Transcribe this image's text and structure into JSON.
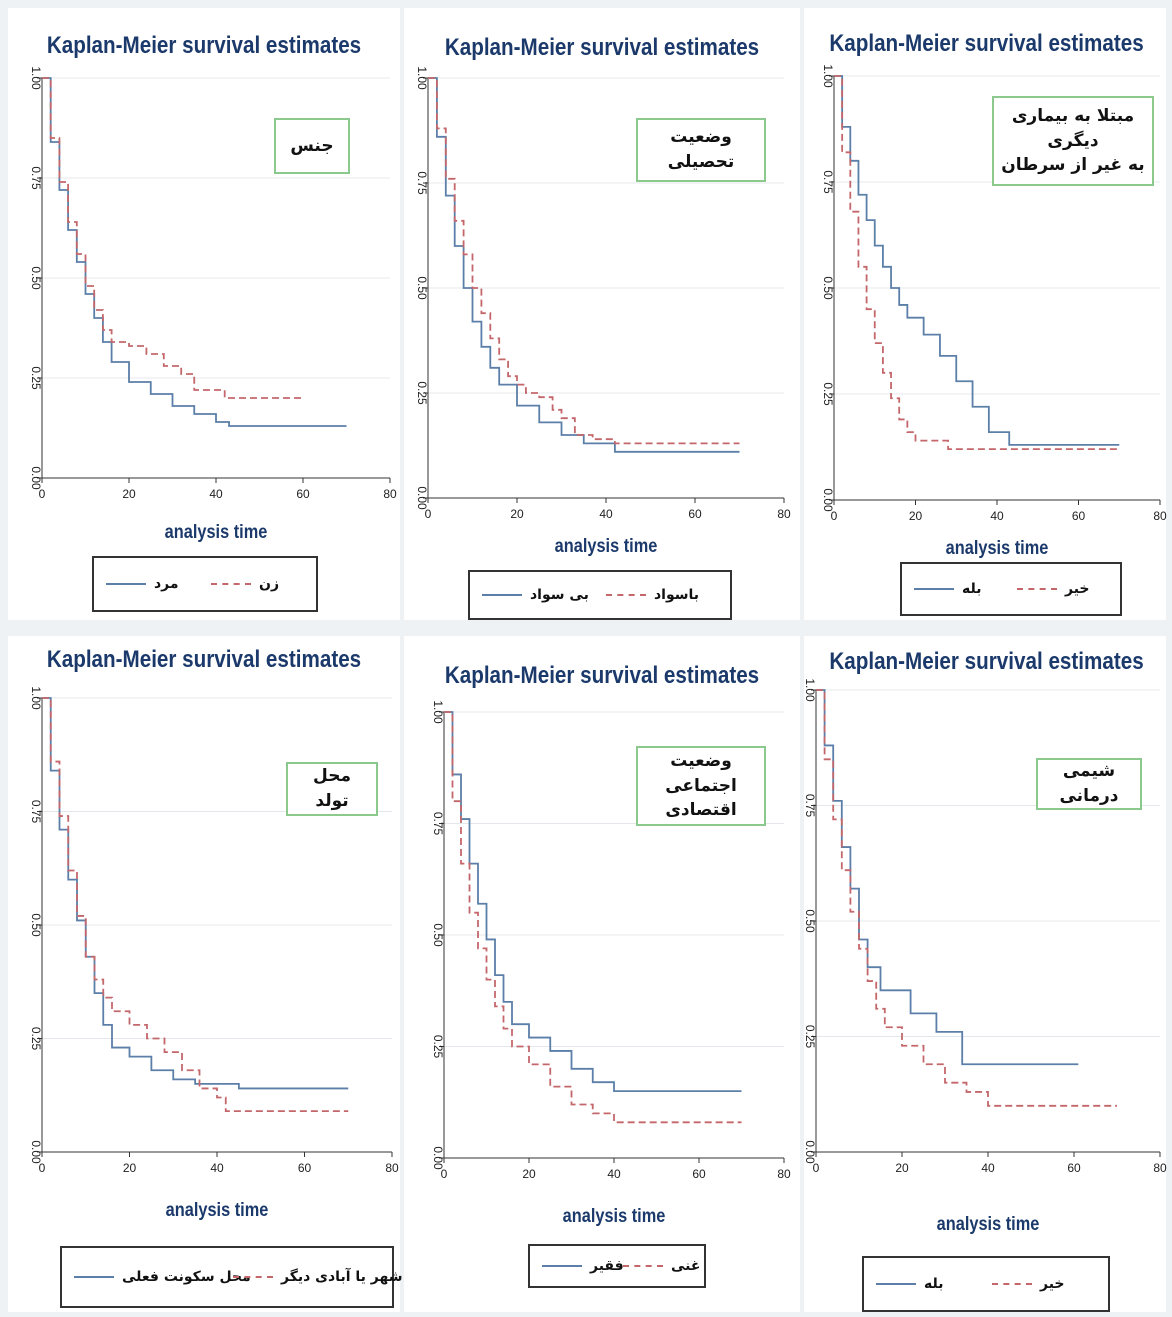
{
  "colors": {
    "series1": "#5b7fa8",
    "series2": "#c4676b",
    "title": "#1b3a6b",
    "covariate_border": "#8cc98c"
  },
  "chart_data": [
    {
      "type": "line",
      "title": "Kaplan-Meier survival estimates",
      "xlabel": "analysis time",
      "covariate_label": [
        "جنس"
      ],
      "xlim": [
        0,
        80
      ],
      "ylim": [
        0,
        1
      ],
      "x_ticks": [
        "0",
        "20",
        "40",
        "60",
        "80"
      ],
      "y_ticks": [
        "0.00",
        "0.25",
        "0.50",
        "0.75",
        "1.00"
      ],
      "legend": "bottom",
      "series": [
        {
          "name": "مرد",
          "style": "solid",
          "points": [
            [
              0,
              1.0
            ],
            [
              2,
              0.84
            ],
            [
              4,
              0.72
            ],
            [
              6,
              0.62
            ],
            [
              8,
              0.54
            ],
            [
              10,
              0.46
            ],
            [
              12,
              0.4
            ],
            [
              14,
              0.34
            ],
            [
              16,
              0.29
            ],
            [
              20,
              0.24
            ],
            [
              25,
              0.21
            ],
            [
              30,
              0.18
            ],
            [
              35,
              0.16
            ],
            [
              40,
              0.14
            ],
            [
              43,
              0.13
            ],
            [
              55,
              0.13
            ],
            [
              70,
              0.13
            ]
          ]
        },
        {
          "name": "زن",
          "style": "dashed",
          "points": [
            [
              0,
              1.0
            ],
            [
              2,
              0.85
            ],
            [
              4,
              0.74
            ],
            [
              6,
              0.64
            ],
            [
              8,
              0.56
            ],
            [
              10,
              0.48
            ],
            [
              12,
              0.42
            ],
            [
              14,
              0.37
            ],
            [
              16,
              0.34
            ],
            [
              20,
              0.33
            ],
            [
              24,
              0.31
            ],
            [
              28,
              0.28
            ],
            [
              32,
              0.26
            ],
            [
              35,
              0.22
            ],
            [
              40,
              0.22
            ],
            [
              42,
              0.2
            ],
            [
              50,
              0.2
            ],
            [
              60,
              0.2
            ]
          ]
        }
      ]
    },
    {
      "type": "line",
      "title": "Kaplan-Meier survival estimates",
      "xlabel": "analysis time",
      "covariate_label": [
        "وضعیت تحصیلی"
      ],
      "xlim": [
        0,
        80
      ],
      "ylim": [
        0,
        1
      ],
      "x_ticks": [
        "0",
        "20",
        "40",
        "60",
        "80"
      ],
      "y_ticks": [
        "0.00",
        "0.25",
        "0.50",
        "0.75",
        "1.00"
      ],
      "legend": "bottom",
      "series": [
        {
          "name": "بی سواد",
          "style": "solid",
          "points": [
            [
              0,
              1.0
            ],
            [
              2,
              0.86
            ],
            [
              4,
              0.72
            ],
            [
              6,
              0.6
            ],
            [
              8,
              0.5
            ],
            [
              10,
              0.42
            ],
            [
              12,
              0.36
            ],
            [
              14,
              0.31
            ],
            [
              16,
              0.27
            ],
            [
              20,
              0.22
            ],
            [
              25,
              0.18
            ],
            [
              30,
              0.15
            ],
            [
              35,
              0.13
            ],
            [
              42,
              0.11
            ],
            [
              50,
              0.11
            ],
            [
              70,
              0.11
            ]
          ]
        },
        {
          "name": "باسواد",
          "style": "dashed",
          "points": [
            [
              0,
              1.0
            ],
            [
              2,
              0.88
            ],
            [
              4,
              0.76
            ],
            [
              6,
              0.66
            ],
            [
              8,
              0.58
            ],
            [
              10,
              0.5
            ],
            [
              12,
              0.44
            ],
            [
              14,
              0.38
            ],
            [
              16,
              0.33
            ],
            [
              18,
              0.29
            ],
            [
              20,
              0.27
            ],
            [
              22,
              0.25
            ],
            [
              25,
              0.24
            ],
            [
              28,
              0.21
            ],
            [
              30,
              0.19
            ],
            [
              33,
              0.15
            ],
            [
              37,
              0.14
            ],
            [
              42,
              0.13
            ],
            [
              50,
              0.13
            ],
            [
              70,
              0.13
            ]
          ]
        }
      ]
    },
    {
      "type": "line",
      "title": "Kaplan-Meier survival estimates",
      "xlabel": "analysis time",
      "covariate_label": [
        "مبتلا به بیماری دیگری",
        "به غیر از سرطان"
      ],
      "xlim": [
        0,
        80
      ],
      "ylim": [
        0,
        1
      ],
      "x_ticks": [
        "0",
        "20",
        "40",
        "60",
        "80"
      ],
      "y_ticks": [
        "0.00",
        "0.25",
        "0.50",
        "0.75",
        "1.00"
      ],
      "legend": "bottom",
      "series": [
        {
          "name": "بله",
          "style": "solid",
          "points": [
            [
              0,
              1.0
            ],
            [
              2,
              0.88
            ],
            [
              4,
              0.8
            ],
            [
              6,
              0.72
            ],
            [
              8,
              0.66
            ],
            [
              10,
              0.6
            ],
            [
              12,
              0.55
            ],
            [
              14,
              0.5
            ],
            [
              16,
              0.46
            ],
            [
              18,
              0.43
            ],
            [
              22,
              0.39
            ],
            [
              26,
              0.34
            ],
            [
              30,
              0.28
            ],
            [
              34,
              0.22
            ],
            [
              38,
              0.16
            ],
            [
              43,
              0.13
            ],
            [
              55,
              0.13
            ],
            [
              70,
              0.13
            ]
          ]
        },
        {
          "name": "خیر",
          "style": "dashed",
          "points": [
            [
              0,
              1.0
            ],
            [
              2,
              0.82
            ],
            [
              4,
              0.68
            ],
            [
              6,
              0.55
            ],
            [
              8,
              0.45
            ],
            [
              10,
              0.37
            ],
            [
              12,
              0.3
            ],
            [
              14,
              0.24
            ],
            [
              16,
              0.19
            ],
            [
              18,
              0.16
            ],
            [
              20,
              0.14
            ],
            [
              25,
              0.14
            ],
            [
              28,
              0.12
            ],
            [
              35,
              0.12
            ],
            [
              45,
              0.12
            ],
            [
              70,
              0.12
            ]
          ]
        }
      ]
    },
    {
      "type": "line",
      "title": "Kaplan-Meier survival estimates",
      "xlabel": "analysis time",
      "covariate_label": [
        "محل تولد"
      ],
      "xlim": [
        0,
        80
      ],
      "ylim": [
        0,
        1
      ],
      "x_ticks": [
        "0",
        "20",
        "40",
        "60",
        "80"
      ],
      "y_ticks": [
        "0.00",
        "0.25",
        "0.50",
        "0.75",
        "1.00"
      ],
      "legend": "bottom",
      "series": [
        {
          "name": "محل سکونت فعلی",
          "style": "solid",
          "points": [
            [
              0,
              1.0
            ],
            [
              2,
              0.84
            ],
            [
              4,
              0.71
            ],
            [
              6,
              0.6
            ],
            [
              8,
              0.51
            ],
            [
              10,
              0.43
            ],
            [
              12,
              0.35
            ],
            [
              14,
              0.28
            ],
            [
              16,
              0.23
            ],
            [
              20,
              0.21
            ],
            [
              25,
              0.18
            ],
            [
              30,
              0.16
            ],
            [
              35,
              0.15
            ],
            [
              45,
              0.14
            ],
            [
              60,
              0.14
            ],
            [
              70,
              0.14
            ]
          ]
        },
        {
          "name": "شهر یا آبادی دیگر",
          "style": "dashed",
          "points": [
            [
              0,
              1.0
            ],
            [
              2,
              0.86
            ],
            [
              4,
              0.74
            ],
            [
              6,
              0.62
            ],
            [
              8,
              0.52
            ],
            [
              10,
              0.43
            ],
            [
              12,
              0.38
            ],
            [
              14,
              0.34
            ],
            [
              16,
              0.31
            ],
            [
              20,
              0.28
            ],
            [
              24,
              0.25
            ],
            [
              28,
              0.22
            ],
            [
              32,
              0.18
            ],
            [
              36,
              0.14
            ],
            [
              40,
              0.12
            ],
            [
              42,
              0.09
            ],
            [
              50,
              0.09
            ],
            [
              70,
              0.09
            ]
          ]
        }
      ]
    },
    {
      "type": "line",
      "title": "Kaplan-Meier survival estimates",
      "xlabel": "analysis time",
      "covariate_label": [
        "وضعیت اجتماعی",
        "اقتصادی"
      ],
      "xlim": [
        0,
        80
      ],
      "ylim": [
        0,
        1
      ],
      "x_ticks": [
        "0",
        "20",
        "40",
        "60",
        "80"
      ],
      "y_ticks": [
        "0.00",
        "0.25",
        "0.50",
        "0.75",
        "1.00"
      ],
      "legend": "bottom",
      "series": [
        {
          "name": "فقیر",
          "style": "solid",
          "points": [
            [
              0,
              1.0
            ],
            [
              2,
              0.86
            ],
            [
              4,
              0.76
            ],
            [
              6,
              0.66
            ],
            [
              8,
              0.57
            ],
            [
              10,
              0.49
            ],
            [
              12,
              0.41
            ],
            [
              14,
              0.35
            ],
            [
              16,
              0.3
            ],
            [
              20,
              0.27
            ],
            [
              25,
              0.24
            ],
            [
              30,
              0.2
            ],
            [
              35,
              0.17
            ],
            [
              40,
              0.15
            ],
            [
              50,
              0.15
            ],
            [
              70,
              0.15
            ]
          ]
        },
        {
          "name": "غنی",
          "style": "dashed",
          "points": [
            [
              0,
              1.0
            ],
            [
              2,
              0.8
            ],
            [
              4,
              0.66
            ],
            [
              6,
              0.55
            ],
            [
              8,
              0.47
            ],
            [
              10,
              0.4
            ],
            [
              12,
              0.34
            ],
            [
              14,
              0.29
            ],
            [
              16,
              0.25
            ],
            [
              20,
              0.21
            ],
            [
              25,
              0.16
            ],
            [
              30,
              0.12
            ],
            [
              35,
              0.1
            ],
            [
              40,
              0.08
            ],
            [
              50,
              0.08
            ],
            [
              70,
              0.08
            ]
          ]
        }
      ]
    },
    {
      "type": "line",
      "title": "Kaplan-Meier survival estimates",
      "xlabel": "analysis time",
      "covariate_label": [
        "شیمی درمانی"
      ],
      "xlim": [
        0,
        80
      ],
      "ylim": [
        0,
        1
      ],
      "x_ticks": [
        "0",
        "20",
        "40",
        "60",
        "80"
      ],
      "y_ticks": [
        "0.00",
        "0.25",
        "0.50",
        "0.75",
        "1.00"
      ],
      "legend": "bottom",
      "series": [
        {
          "name": "بله",
          "style": "solid",
          "points": [
            [
              0,
              1.0
            ],
            [
              2,
              0.88
            ],
            [
              4,
              0.76
            ],
            [
              6,
              0.66
            ],
            [
              8,
              0.57
            ],
            [
              10,
              0.46
            ],
            [
              12,
              0.4
            ],
            [
              15,
              0.35
            ],
            [
              20,
              0.35
            ],
            [
              22,
              0.3
            ],
            [
              25,
              0.3
            ],
            [
              28,
              0.26
            ],
            [
              32,
              0.26
            ],
            [
              34,
              0.19
            ],
            [
              40,
              0.19
            ],
            [
              50,
              0.19
            ],
            [
              61,
              0.19
            ]
          ]
        },
        {
          "name": "خیر",
          "style": "dashed",
          "points": [
            [
              0,
              1.0
            ],
            [
              2,
              0.85
            ],
            [
              4,
              0.72
            ],
            [
              6,
              0.61
            ],
            [
              8,
              0.52
            ],
            [
              10,
              0.44
            ],
            [
              12,
              0.37
            ],
            [
              14,
              0.31
            ],
            [
              16,
              0.27
            ],
            [
              20,
              0.23
            ],
            [
              25,
              0.19
            ],
            [
              30,
              0.15
            ],
            [
              35,
              0.13
            ],
            [
              40,
              0.1
            ],
            [
              50,
              0.1
            ],
            [
              70,
              0.1
            ]
          ]
        }
      ]
    }
  ]
}
